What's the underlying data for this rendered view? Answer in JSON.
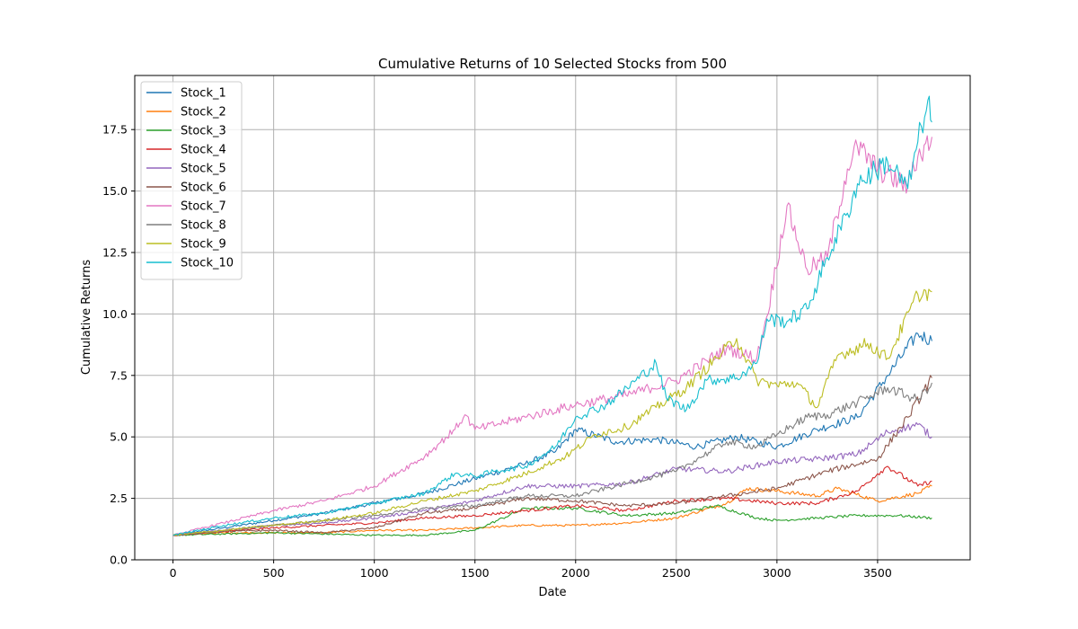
{
  "chart_data": {
    "type": "line",
    "title": "Cumulative Returns of 10 Selected Stocks from 500",
    "xlabel": "Date",
    "ylabel": "Cumulative Returns",
    "xlim": [
      -190,
      3960
    ],
    "ylim": [
      0,
      19.7
    ],
    "xticks": [
      0,
      500,
      1000,
      1500,
      2000,
      2500,
      3000,
      3500
    ],
    "xtick_labels": [
      "0",
      "500",
      "1000",
      "1500",
      "2000",
      "2500",
      "3000",
      "3500"
    ],
    "yticks": [
      0,
      2.5,
      5,
      7.5,
      10,
      12.5,
      15,
      17.5
    ],
    "ytick_labels": [
      "0.0",
      "2.5",
      "5.0",
      "7.5",
      "10.0",
      "12.5",
      "15.0",
      "17.5"
    ],
    "grid": true,
    "legend_position": "top-left",
    "series": [
      {
        "name": "Stock_1",
        "color": "#1f77b4",
        "x": [
          0,
          250,
          500,
          750,
          1000,
          1250,
          1500,
          1750,
          1900,
          2000,
          2200,
          2400,
          2600,
          2800,
          3000,
          3200,
          3400,
          3550,
          3700,
          3770
        ],
        "y": [
          1.0,
          1.3,
          1.6,
          1.9,
          2.3,
          2.7,
          3.3,
          3.9,
          4.4,
          5.3,
          4.8,
          4.9,
          4.6,
          5.0,
          4.6,
          5.3,
          5.8,
          7.5,
          9.2,
          8.9
        ]
      },
      {
        "name": "Stock_2",
        "color": "#ff7f0e",
        "x": [
          0,
          250,
          500,
          750,
          1000,
          1250,
          1500,
          1750,
          2000,
          2250,
          2500,
          2750,
          2850,
          3000,
          3200,
          3300,
          3500,
          3700,
          3770
        ],
        "y": [
          1.0,
          1.1,
          1.1,
          1.1,
          1.2,
          1.2,
          1.3,
          1.4,
          1.4,
          1.5,
          1.7,
          2.3,
          2.9,
          2.8,
          2.6,
          2.9,
          2.4,
          2.7,
          3.0
        ]
      },
      {
        "name": "Stock_3",
        "color": "#2ca02c",
        "x": [
          0,
          250,
          500,
          750,
          1000,
          1250,
          1500,
          1750,
          2000,
          2250,
          2500,
          2700,
          2900,
          3000,
          3200,
          3400,
          3600,
          3770
        ],
        "y": [
          1.0,
          1.05,
          1.1,
          1.05,
          1.0,
          1.0,
          1.2,
          2.1,
          2.1,
          1.8,
          1.9,
          2.2,
          1.7,
          1.6,
          1.7,
          1.8,
          1.8,
          1.7
        ]
      },
      {
        "name": "Stock_4",
        "color": "#d62728",
        "x": [
          0,
          250,
          500,
          750,
          1000,
          1250,
          1500,
          1750,
          2000,
          2250,
          2500,
          2750,
          3000,
          3200,
          3400,
          3500,
          3550,
          3700,
          3770
        ],
        "y": [
          1.0,
          1.15,
          1.3,
          1.4,
          1.5,
          1.7,
          1.8,
          2.0,
          2.2,
          2.0,
          2.4,
          2.5,
          2.3,
          2.3,
          2.8,
          3.5,
          3.8,
          3.0,
          3.2
        ]
      },
      {
        "name": "Stock_5",
        "color": "#9467bd",
        "x": [
          0,
          250,
          500,
          750,
          1000,
          1250,
          1500,
          1750,
          2000,
          2250,
          2500,
          2750,
          3000,
          3200,
          3400,
          3550,
          3700,
          3770
        ],
        "y": [
          1.0,
          1.2,
          1.4,
          1.5,
          1.7,
          2.0,
          2.4,
          3.0,
          3.0,
          3.1,
          3.7,
          3.6,
          4.0,
          4.1,
          4.3,
          5.2,
          5.5,
          5.0
        ]
      },
      {
        "name": "Stock_6",
        "color": "#8c564b",
        "x": [
          0,
          250,
          500,
          750,
          1000,
          1250,
          1500,
          1750,
          2000,
          2250,
          2500,
          2750,
          3000,
          3250,
          3500,
          3650,
          3770
        ],
        "y": [
          1.0,
          1.15,
          1.2,
          1.1,
          1.3,
          1.9,
          2.1,
          2.5,
          2.4,
          2.2,
          2.3,
          2.6,
          2.9,
          3.6,
          4.1,
          5.8,
          7.4
        ]
      },
      {
        "name": "Stock_7",
        "color": "#e377c2",
        "x": [
          0,
          250,
          500,
          750,
          1000,
          1250,
          1400,
          1450,
          1500,
          1750,
          2000,
          2250,
          2500,
          2750,
          2900,
          2950,
          3050,
          3150,
          3250,
          3350,
          3400,
          3500,
          3650,
          3700,
          3770
        ],
        "y": [
          1.0,
          1.5,
          2.0,
          2.4,
          3.0,
          4.2,
          5.3,
          5.9,
          5.3,
          5.8,
          6.3,
          6.7,
          7.3,
          8.6,
          8.2,
          9.9,
          14.4,
          11.8,
          12.3,
          15.9,
          16.8,
          15.9,
          15.2,
          16.4,
          17.2
        ]
      },
      {
        "name": "Stock_8",
        "color": "#7f7f7f",
        "x": [
          0,
          250,
          500,
          750,
          1000,
          1250,
          1500,
          1750,
          2000,
          2250,
          2500,
          2750,
          2900,
          3000,
          3150,
          3250,
          3400,
          3550,
          3700,
          3770
        ],
        "y": [
          1.0,
          1.2,
          1.4,
          1.6,
          1.8,
          2.1,
          2.2,
          2.6,
          2.6,
          3.1,
          3.6,
          4.8,
          4.6,
          5.1,
          5.8,
          5.9,
          6.4,
          7.0,
          6.5,
          7.2
        ]
      },
      {
        "name": "Stock_9",
        "color": "#bcbd22",
        "x": [
          0,
          250,
          500,
          750,
          1000,
          1250,
          1500,
          1750,
          1950,
          2100,
          2250,
          2400,
          2550,
          2700,
          2800,
          2900,
          3000,
          3100,
          3200,
          3300,
          3450,
          3550,
          3700,
          3770
        ],
        "y": [
          1.0,
          1.2,
          1.4,
          1.6,
          1.9,
          2.4,
          2.8,
          3.5,
          4.2,
          5.1,
          5.4,
          6.2,
          7.0,
          8.2,
          9.0,
          7.3,
          7.1,
          7.2,
          6.2,
          8.3,
          8.8,
          8.2,
          10.8,
          10.9
        ]
      },
      {
        "name": "Stock_10",
        "color": "#17becf",
        "x": [
          0,
          250,
          500,
          750,
          1000,
          1250,
          1400,
          1500,
          1600,
          1750,
          1900,
          2000,
          2150,
          2300,
          2400,
          2450,
          2550,
          2650,
          2800,
          2900,
          2950,
          3050,
          3150,
          3250,
          3350,
          3400,
          3550,
          3650,
          3700,
          3750,
          3770
        ],
        "y": [
          1.0,
          1.4,
          1.7,
          1.9,
          2.3,
          2.7,
          3.5,
          3.4,
          3.6,
          3.8,
          4.6,
          5.8,
          6.3,
          7.3,
          8.0,
          6.6,
          6.1,
          7.3,
          7.4,
          8.0,
          9.8,
          9.7,
          10.2,
          12.3,
          14.1,
          15.3,
          16.2,
          15.1,
          17.0,
          18.7,
          17.8
        ]
      }
    ]
  }
}
